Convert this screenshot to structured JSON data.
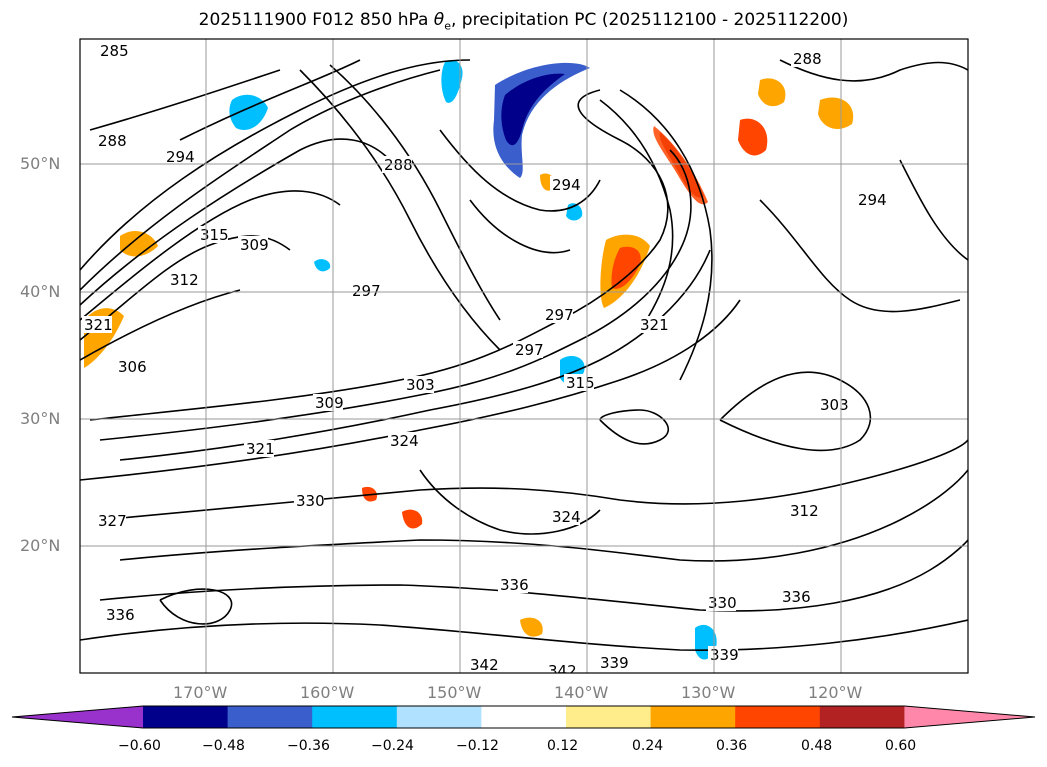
{
  "title_prefix": "2025111900 F012 850 hPa ",
  "title_theta": "θ",
  "title_sub": "e",
  "title_suffix": ", precipitation PC (2025112100 - 2025112200)",
  "lat_labels": [
    "50°N",
    "40°N",
    "30°N",
    "20°N"
  ],
  "lon_labels": [
    "170°W",
    "160°W",
    "150°W",
    "140°W",
    "130°W",
    "120°W"
  ],
  "contour_labels": [
    "285",
    "288",
    "288",
    "288",
    "294",
    "294",
    "294",
    "297",
    "297",
    "297",
    "303",
    "303",
    "306",
    "309",
    "309",
    "312",
    "312",
    "315",
    "315",
    "321",
    "321",
    "321",
    "324",
    "324",
    "327",
    "330",
    "330",
    "336",
    "336",
    "336",
    "339",
    "339",
    "342",
    "342"
  ],
  "colorbar": {
    "colors": [
      "#9932CC",
      "#00008B",
      "#3A5FCD",
      "#00BFFF",
      "#B0E2FF",
      "#FFFFFF",
      "#FFEC8B",
      "#FFA500",
      "#FF4500",
      "#B22222",
      "#FF88AA"
    ],
    "ticks": [
      "−0.60",
      "−0.48",
      "−0.36",
      "−0.24",
      "−0.12",
      "0.12",
      "0.24",
      "0.36",
      "0.48",
      "0.60"
    ]
  }
}
